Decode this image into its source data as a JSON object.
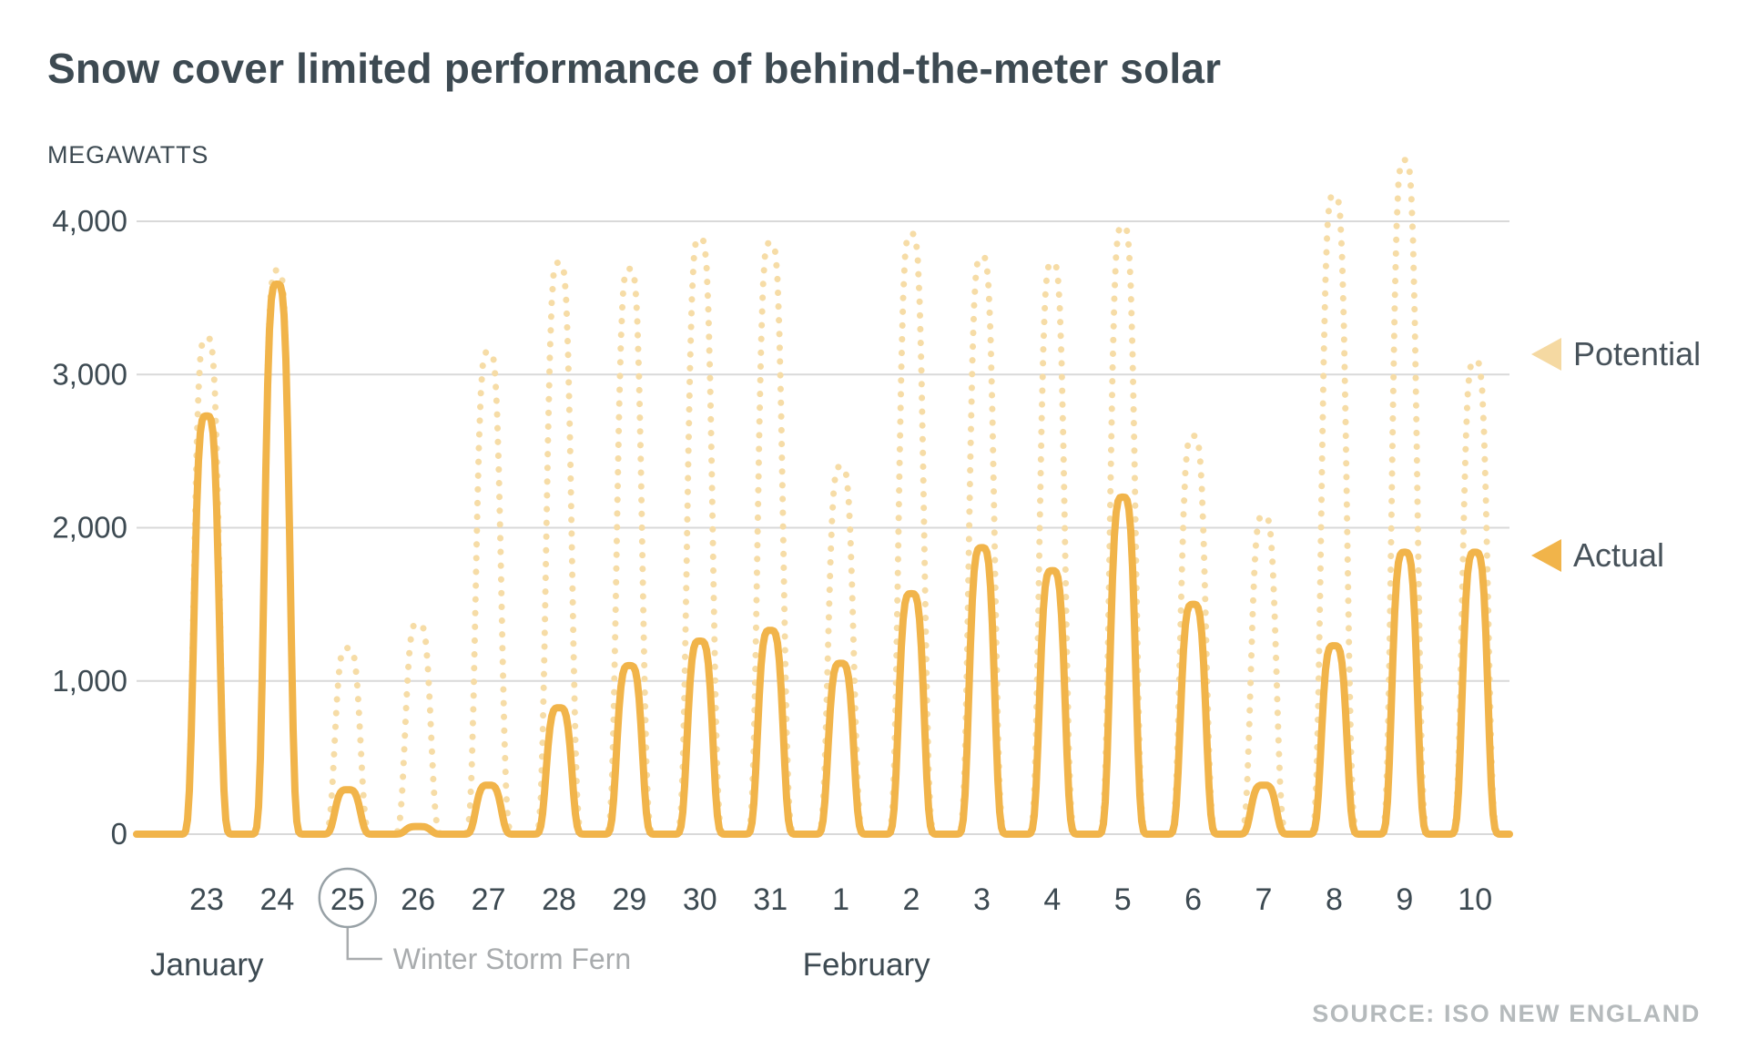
{
  "title": "Snow cover limited performance of behind-the-meter solar",
  "axis": {
    "y_unit_label": "MEGAWATTS",
    "y_ticks": [
      {
        "value": 0,
        "label": "0"
      },
      {
        "value": 1000,
        "label": "1,000"
      },
      {
        "value": 2000,
        "label": "2,000"
      },
      {
        "value": 3000,
        "label": "3,000"
      },
      {
        "value": 4000,
        "label": "4,000"
      }
    ]
  },
  "legend": {
    "potential_label": "Potential",
    "actual_label": "Actual",
    "potential_color": "#f5d9a2",
    "actual_color": "#f1b44a"
  },
  "annotation": {
    "circled_day": "25",
    "text": "Winter Storm Fern"
  },
  "months": [
    {
      "label": "January",
      "day_index": 0
    },
    {
      "label": "February",
      "day_index": 9
    }
  ],
  "source": "SOURCE: ISO NEW ENGLAND",
  "colors": {
    "actual_line": "#f1b44a",
    "potential_dots": "#f6dca6",
    "gridline": "#d9d9d9",
    "dark_text": "#3d4a52",
    "gray_text": "#a9acae",
    "circle_stroke": "#98a1a6"
  },
  "chart_data": {
    "type": "line",
    "title": "Snow cover limited performance of behind-the-meter solar",
    "ylabel": "MEGAWATTS",
    "ylim": [
      0,
      4400
    ],
    "grid": true,
    "legend_position": "right",
    "x_categories": [
      "Jan 23",
      "Jan 24",
      "Jan 25",
      "Jan 26",
      "Jan 27",
      "Jan 28",
      "Jan 29",
      "Jan 30",
      "Jan 31",
      "Feb 1",
      "Feb 2",
      "Feb 3",
      "Feb 4",
      "Feb 5",
      "Feb 6",
      "Feb 7",
      "Feb 8",
      "Feb 9",
      "Feb 10"
    ],
    "x_tick_labels": [
      "23",
      "24",
      "25",
      "26",
      "27",
      "28",
      "29",
      "30",
      "31",
      "1",
      "2",
      "3",
      "4",
      "5",
      "6",
      "7",
      "8",
      "9",
      "10"
    ],
    "series": [
      {
        "name": "Potential",
        "style": "dotted",
        "color": "#f6dca6",
        "daily_peak_mw": [
          3240,
          3680,
          1215,
          1375,
          3150,
          3730,
          3690,
          3890,
          3860,
          2400,
          3920,
          3770,
          3730,
          3970,
          2600,
          2080,
          4170,
          4400,
          3090
        ]
      },
      {
        "name": "Actual",
        "style": "solid",
        "color": "#f1b44a",
        "daily_peak_mw": [
          2730,
          3590,
          290,
          50,
          320,
          825,
          1100,
          1260,
          1330,
          1115,
          1570,
          1870,
          1720,
          2200,
          1500,
          320,
          1230,
          1840,
          1840
        ]
      }
    ],
    "annotations": [
      {
        "x_category": "Jan 25",
        "text": "Winter Storm Fern"
      }
    ],
    "note": "Each day shows a bell-shaped solar-output curve between 0 MW overnight and the listed midday peak."
  }
}
